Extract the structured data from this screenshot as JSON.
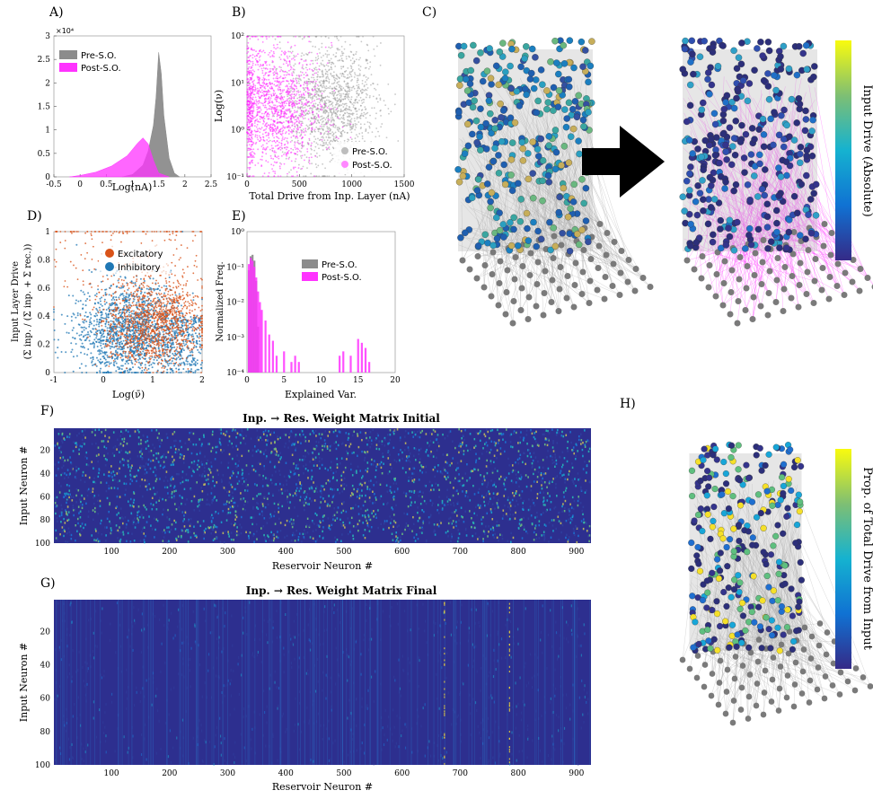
{
  "panel_labels": {
    "a": "A)",
    "b": "B)",
    "c": "C)",
    "d": "D)",
    "e": "E)",
    "f": "F)",
    "g": "G)",
    "h": "H)"
  },
  "colors": {
    "pre": "#8c8c8c",
    "post": "#ff33ff",
    "excitatory": "#d95319",
    "inhibitory": "#1f77b4",
    "heat_low": "#2f2f8f",
    "heat_high": "#f9e721"
  },
  "chart_data": [
    {
      "id": "A",
      "type": "area",
      "xlabel": "Log(nA)",
      "ylabel": "",
      "exponent_label": "×10⁴",
      "xlim": [
        -0.5,
        2.5
      ],
      "ylim": [
        0,
        30000
      ],
      "x_ticks": [
        "-0.5",
        "0",
        "0.5",
        "1",
        "1.5",
        "2",
        "2.5"
      ],
      "y_ticks": [
        "0",
        "0.5",
        "1",
        "1.5",
        "2",
        "2.5",
        "3"
      ],
      "legend": {
        "position": "top-left",
        "entries": [
          "Pre-S.O.",
          "Post-S.O."
        ]
      },
      "series": [
        {
          "name": "Pre-S.O.",
          "x": [
            0.8,
            1.0,
            1.2,
            1.3,
            1.4,
            1.45,
            1.5,
            1.55,
            1.6,
            1.7,
            1.8,
            1.9
          ],
          "values": [
            0,
            500,
            2500,
            5500,
            11000,
            17000,
            26500,
            22000,
            13000,
            4000,
            800,
            0
          ]
        },
        {
          "name": "Post-S.O.",
          "x": [
            -0.2,
            0.0,
            0.3,
            0.6,
            0.9,
            1.1,
            1.2,
            1.3,
            1.4,
            1.5,
            1.7
          ],
          "values": [
            0,
            300,
            1000,
            2300,
            4500,
            7200,
            8300,
            7000,
            3500,
            800,
            0
          ]
        }
      ]
    },
    {
      "id": "B",
      "type": "scatter",
      "xlabel": "Total Drive from Inp. Layer (nA)",
      "ylabel": "Log(ν)",
      "xlim": [
        0,
        1500
      ],
      "y_scale": "log",
      "x_ticks": [
        "0",
        "500",
        "1000",
        "1500"
      ],
      "y_ticks": [
        "10⁻¹",
        "10⁰",
        "10¹",
        "10²"
      ],
      "legend": {
        "position": "bottom-right",
        "entries": [
          "Pre-S.O.",
          "Post-S.O."
        ]
      },
      "series": [
        {
          "name": "Pre-S.O.",
          "x_center": 800,
          "x_spread": 260
        },
        {
          "name": "Post-S.O.",
          "x_center": 250,
          "x_spread": 220
        }
      ]
    },
    {
      "id": "D",
      "type": "scatter",
      "xlabel": "Log(ν̄)",
      "ylabel": "Input Layer Drive",
      "ylabel2": "(Σ inp. / (Σ inp. + Σ rec.))",
      "xlim": [
        -1,
        2
      ],
      "ylim": [
        0,
        1
      ],
      "x_ticks": [
        "-1",
        "0",
        "1",
        "2"
      ],
      "y_ticks": [
        "0",
        "0.2",
        "0.4",
        "0.6",
        "0.8",
        "1"
      ],
      "legend": {
        "position": "top",
        "entries": [
          "Excitatory",
          "Inhibitory"
        ]
      },
      "series": [
        {
          "name": "Excitatory",
          "x_center": 1.1,
          "y_center": 0.32
        },
        {
          "name": "Inhibitory",
          "x_center": 0.6,
          "y_center": 0.3
        }
      ]
    },
    {
      "id": "E",
      "type": "bar",
      "xlabel": "Explained Var.",
      "ylabel": "Normalized Freq.",
      "xlim": [
        0,
        20
      ],
      "y_scale": "log",
      "x_ticks": [
        "0",
        "5",
        "10",
        "15",
        "20"
      ],
      "y_ticks": [
        "10⁻⁴",
        "10⁻³",
        "10⁻²",
        "10⁻¹",
        "10⁰"
      ],
      "legend": {
        "position": "top-right",
        "entries": [
          "Pre-S.O.",
          "Post-S.O."
        ]
      },
      "series": [
        {
          "name": "Pre-S.O.",
          "x": [
            0.25,
            0.5,
            0.75,
            1.0,
            1.25,
            1.5
          ],
          "values": [
            0.08,
            0.2,
            0.22,
            0.15,
            0.04,
            0.002
          ]
        },
        {
          "name": "Post-S.O.",
          "x": [
            0.25,
            0.5,
            0.75,
            1.0,
            1.25,
            1.5,
            1.75,
            2.0,
            2.5,
            3.0,
            3.5,
            4.0,
            5.0,
            6.0,
            6.5,
            7.0,
            12.5,
            13.0,
            14.0,
            15.0,
            15.5,
            16.0,
            16.5
          ],
          "values": [
            0.12,
            0.18,
            0.15,
            0.1,
            0.05,
            0.02,
            0.01,
            0.006,
            0.003,
            0.0012,
            0.0008,
            0.0003,
            0.0004,
            0.0002,
            0.0003,
            0.0002,
            0.0003,
            0.0004,
            0.0003,
            0.0009,
            0.0007,
            0.0005,
            0.0002
          ]
        }
      ]
    },
    {
      "id": "F",
      "type": "heatmap",
      "title": "Inp. → Res. Weight Matrix Initial",
      "xlabel": "Reservoir Neuron #",
      "ylabel": "Input Neuron #",
      "xlim": [
        1,
        925
      ],
      "ylim": [
        1,
        100
      ],
      "x_ticks": [
        "100",
        "200",
        "300",
        "400",
        "500",
        "600",
        "700",
        "800",
        "900"
      ],
      "y_ticks": [
        "20",
        "40",
        "60",
        "80",
        "100"
      ],
      "density": "high"
    },
    {
      "id": "G",
      "type": "heatmap",
      "title": "Inp. → Res. Weight Matrix Final",
      "xlabel": "Reservoir Neuron #",
      "ylabel": "Input Neuron #",
      "xlim": [
        1,
        925
      ],
      "ylim": [
        1,
        100
      ],
      "x_ticks": [
        "100",
        "200",
        "300",
        "400",
        "500",
        "600",
        "700",
        "800",
        "900"
      ],
      "y_ticks": [
        "20",
        "40",
        "60",
        "80",
        "100"
      ],
      "density": "low"
    }
  ],
  "network_c": {
    "colorbar_label": "Input Drive (Absolute)"
  },
  "network_h": {
    "colorbar_label": "Prop. of Total Drive from Input"
  }
}
